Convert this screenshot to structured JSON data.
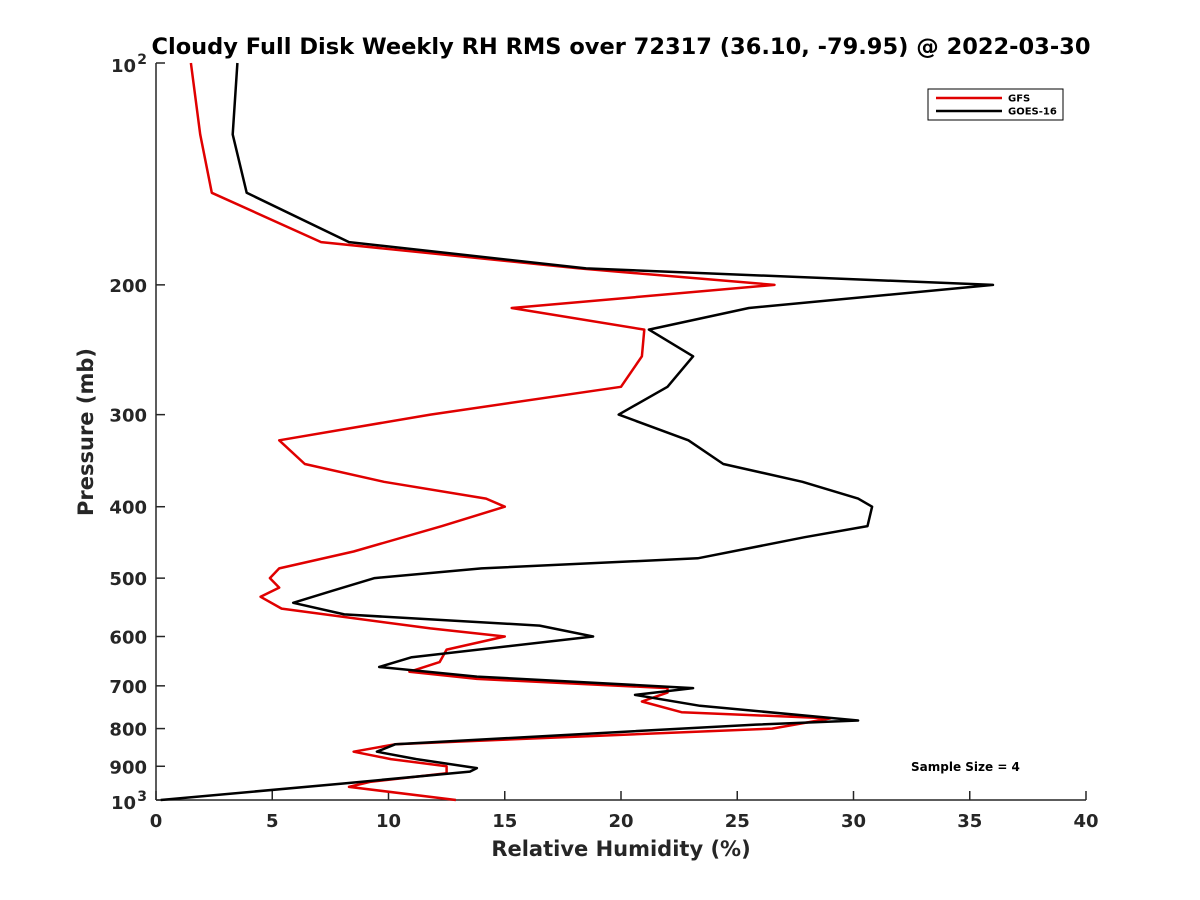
{
  "chart_data": {
    "type": "line",
    "title": "Cloudy Full Disk Weekly RH RMS over 72317 (36.10, -79.95) @ 2022-03-30",
    "xlabel": "Relative Humidity (%)",
    "ylabel": "Pressure (mb)",
    "xlim": [
      0,
      40
    ],
    "ylim": [
      100,
      1000
    ],
    "yscale": "log",
    "y_reversed": true,
    "x_ticks": [
      "0",
      "5",
      "10",
      "15",
      "20",
      "25",
      "30",
      "35",
      "40"
    ],
    "y_ticks": [
      {
        "value": 100,
        "base": "10",
        "exp": "2"
      },
      {
        "value": 200,
        "label": "200"
      },
      {
        "value": 300,
        "label": "300"
      },
      {
        "value": 400,
        "label": "400"
      },
      {
        "value": 500,
        "label": "500"
      },
      {
        "value": 600,
        "label": "600"
      },
      {
        "value": 700,
        "label": "700"
      },
      {
        "value": 800,
        "label": "800"
      },
      {
        "value": 900,
        "label": "900"
      },
      {
        "value": 1000,
        "base": "10",
        "exp": "3"
      }
    ],
    "grid": false,
    "legend_position": "top-right",
    "annotation": "Sample Size = 4",
    "series": [
      {
        "name": "GFS",
        "color": "#e00000",
        "points": [
          [
            1.5,
            100
          ],
          [
            1.9,
            125
          ],
          [
            2.4,
            150
          ],
          [
            7.1,
            175
          ],
          [
            18.2,
            190
          ],
          [
            26.6,
            200
          ],
          [
            15.3,
            215
          ],
          [
            21.0,
            230
          ],
          [
            20.9,
            250
          ],
          [
            20.0,
            275
          ],
          [
            11.8,
            300
          ],
          [
            5.3,
            325
          ],
          [
            6.4,
            350
          ],
          [
            9.8,
            370
          ],
          [
            14.2,
            390
          ],
          [
            15.0,
            400
          ],
          [
            12.3,
            425
          ],
          [
            8.5,
            460
          ],
          [
            5.3,
            485
          ],
          [
            4.9,
            500
          ],
          [
            5.3,
            515
          ],
          [
            4.5,
            530
          ],
          [
            5.4,
            550
          ],
          [
            11.8,
            585
          ],
          [
            15.0,
            600
          ],
          [
            12.5,
            625
          ],
          [
            12.2,
            650
          ],
          [
            10.9,
            670
          ],
          [
            13.8,
            685
          ],
          [
            22.0,
            705
          ],
          [
            22.0,
            715
          ],
          [
            20.9,
            735
          ],
          [
            22.6,
            760
          ],
          [
            29.0,
            775
          ],
          [
            26.5,
            800
          ],
          [
            10.3,
            840
          ],
          [
            8.5,
            860
          ],
          [
            10.1,
            880
          ],
          [
            12.5,
            900
          ],
          [
            12.5,
            920
          ],
          [
            9.2,
            945
          ],
          [
            8.3,
            960
          ],
          [
            12.9,
            1000
          ]
        ]
      },
      {
        "name": "GOES-16",
        "color": "#000000",
        "points": [
          [
            3.5,
            100
          ],
          [
            3.3,
            125
          ],
          [
            3.9,
            150
          ],
          [
            8.3,
            175
          ],
          [
            18.5,
            190
          ],
          [
            36.0,
            200
          ],
          [
            25.5,
            215
          ],
          [
            21.2,
            230
          ],
          [
            23.1,
            250
          ],
          [
            22.0,
            275
          ],
          [
            19.9,
            300
          ],
          [
            22.9,
            325
          ],
          [
            24.4,
            350
          ],
          [
            27.8,
            370
          ],
          [
            30.2,
            390
          ],
          [
            30.8,
            400
          ],
          [
            30.6,
            425
          ],
          [
            27.9,
            440
          ],
          [
            23.3,
            470
          ],
          [
            14.0,
            485
          ],
          [
            9.4,
            500
          ],
          [
            7.6,
            520
          ],
          [
            5.9,
            540
          ],
          [
            8.1,
            560
          ],
          [
            16.5,
            580
          ],
          [
            18.8,
            600
          ],
          [
            11.0,
            640
          ],
          [
            9.6,
            660
          ],
          [
            13.8,
            680
          ],
          [
            23.1,
            705
          ],
          [
            20.6,
            720
          ],
          [
            23.4,
            745
          ],
          [
            30.2,
            780
          ],
          [
            25.8,
            790
          ],
          [
            10.3,
            840
          ],
          [
            9.5,
            860
          ],
          [
            11.2,
            880
          ],
          [
            13.8,
            905
          ],
          [
            13.5,
            915
          ],
          [
            8.0,
            950
          ],
          [
            0.2,
            1000
          ]
        ]
      }
    ]
  }
}
